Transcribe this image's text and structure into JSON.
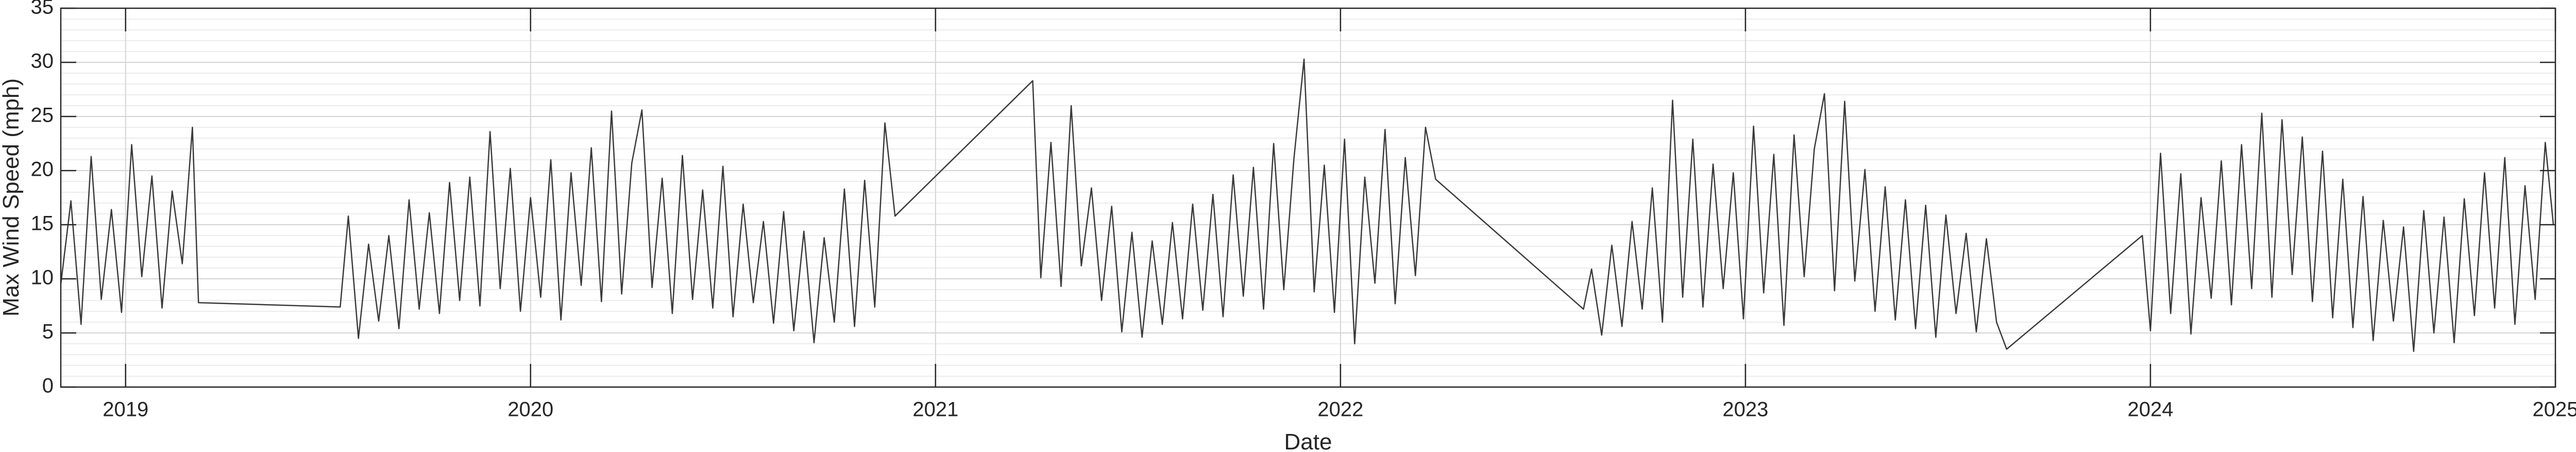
{
  "chart_data": {
    "type": "line",
    "xlabel": "Date",
    "ylabel": "Max Wind Speed (mph)",
    "xlim": [
      2018.84,
      2025
    ],
    "xticks": [
      2019,
      2020,
      2021,
      2022,
      2023,
      2024,
      2025
    ],
    "ylim": [
      0,
      35
    ],
    "yticks": [
      0,
      5,
      10,
      15,
      20,
      25,
      30,
      35
    ],
    "grid": true,
    "minor_grid": true,
    "color": "#3a3a3a",
    "x": [
      2018.84,
      2018.865,
      2018.89,
      2018.915,
      2018.94,
      2018.965,
      2018.99,
      2019.015,
      2019.04,
      2019.065,
      2019.09,
      2019.115,
      2019.14,
      2019.165,
      2019.18,
      2019.53,
      2019.55,
      2019.575,
      2019.6,
      2019.625,
      2019.65,
      2019.675,
      2019.7,
      2019.725,
      2019.75,
      2019.775,
      2019.8,
      2019.825,
      2019.85,
      2019.875,
      2019.9,
      2019.925,
      2019.95,
      2019.975,
      2020,
      2020.025,
      2020.05,
      2020.075,
      2020.1,
      2020.125,
      2020.15,
      2020.175,
      2020.2,
      2020.225,
      2020.25,
      2020.275,
      2020.3,
      2020.325,
      2020.35,
      2020.375,
      2020.4,
      2020.425,
      2020.45,
      2020.475,
      2020.5,
      2020.525,
      2020.55,
      2020.575,
      2020.6,
      2020.625,
      2020.65,
      2020.675,
      2020.7,
      2020.725,
      2020.75,
      2020.775,
      2020.8,
      2020.825,
      2020.85,
      2020.875,
      2020.9,
      2021.24,
      2021.26,
      2021.285,
      2021.31,
      2021.335,
      2021.36,
      2021.385,
      2021.41,
      2021.435,
      2021.46,
      2021.485,
      2021.51,
      2021.535,
      2021.56,
      2021.585,
      2021.61,
      2021.635,
      2021.66,
      2021.685,
      2021.71,
      2021.735,
      2021.76,
      2021.785,
      2021.81,
      2021.835,
      2021.86,
      2021.885,
      2021.91,
      2021.935,
      2021.96,
      2021.985,
      2022.01,
      2022.035,
      2022.06,
      2022.085,
      2022.11,
      2022.135,
      2022.16,
      2022.185,
      2022.21,
      2022.235,
      2022.6,
      2022.62,
      2022.645,
      2022.67,
      2022.695,
      2022.72,
      2022.745,
      2022.77,
      2022.795,
      2022.82,
      2022.845,
      2022.87,
      2022.895,
      2022.92,
      2022.945,
      2022.97,
      2022.995,
      2023.02,
      2023.045,
      2023.07,
      2023.095,
      2023.12,
      2023.145,
      2023.17,
      2023.195,
      2023.22,
      2023.245,
      2023.27,
      2023.295,
      2023.32,
      2023.345,
      2023.37,
      2023.395,
      2023.42,
      2023.445,
      2023.47,
      2023.495,
      2023.52,
      2023.545,
      2023.57,
      2023.595,
      2023.62,
      2023.645,
      2023.98,
      2024,
      2024.025,
      2024.05,
      2024.075,
      2024.1,
      2024.125,
      2024.15,
      2024.175,
      2024.2,
      2024.225,
      2024.25,
      2024.275,
      2024.3,
      2024.325,
      2024.35,
      2024.375,
      2024.4,
      2024.425,
      2024.45,
      2024.475,
      2024.5,
      2024.525,
      2024.55,
      2024.575,
      2024.6,
      2024.625,
      2024.65,
      2024.675,
      2024.7,
      2024.725,
      2024.75,
      2024.775,
      2024.8,
      2024.825,
      2024.85,
      2024.875,
      2024.9,
      2024.925,
      2024.95,
      2024.975,
      2024.995
    ],
    "values": [
      9.5,
      17.2,
      5.8,
      21.3,
      8.1,
      16.4,
      6.9,
      22.4,
      10.2,
      19.5,
      7.3,
      18.1,
      11.4,
      24.0,
      7.8,
      7.4,
      15.8,
      4.5,
      13.2,
      6.1,
      14.0,
      5.4,
      17.3,
      7.2,
      16.1,
      6.8,
      18.9,
      8.0,
      19.4,
      7.5,
      23.6,
      9.1,
      20.2,
      7.0,
      17.5,
      8.3,
      21.0,
      6.2,
      19.8,
      9.4,
      22.1,
      7.9,
      25.5,
      8.6,
      20.7,
      25.6,
      9.2,
      19.3,
      6.8,
      21.4,
      8.1,
      18.2,
      7.3,
      20.4,
      6.5,
      16.9,
      7.8,
      15.3,
      5.9,
      16.2,
      5.2,
      14.4,
      4.1,
      13.8,
      6.0,
      18.3,
      5.6,
      19.1,
      7.4,
      24.4,
      15.8,
      28.3,
      10.1,
      22.6,
      9.3,
      26.0,
      11.2,
      18.4,
      8.0,
      16.7,
      5.1,
      14.3,
      4.6,
      13.5,
      5.8,
      15.2,
      6.3,
      16.9,
      7.1,
      17.8,
      6.5,
      19.6,
      8.4,
      20.3,
      7.2,
      22.5,
      9.0,
      21.1,
      30.3,
      8.8,
      20.5,
      6.9,
      22.9,
      4.0,
      19.4,
      9.6,
      23.8,
      7.7,
      21.2,
      10.3,
      24.0,
      19.2,
      7.2,
      10.9,
      4.8,
      13.1,
      5.6,
      15.3,
      7.2,
      18.4,
      6.0,
      26.5,
      8.3,
      22.9,
      7.4,
      20.6,
      9.1,
      19.8,
      6.3,
      24.1,
      8.7,
      21.5,
      5.7,
      23.3,
      10.2,
      22.0,
      27.1,
      8.9,
      26.4,
      9.8,
      20.1,
      7.0,
      18.5,
      6.2,
      17.3,
      5.4,
      16.8,
      4.6,
      15.9,
      6.8,
      14.2,
      5.1,
      13.7,
      6.0,
      3.5,
      14.0,
      5.2,
      21.6,
      6.8,
      19.7,
      4.9,
      17.5,
      8.2,
      20.9,
      7.6,
      22.4,
      9.1,
      25.3,
      8.3,
      24.7,
      10.4,
      23.1,
      7.9,
      21.8,
      6.4,
      19.2,
      5.5,
      17.6,
      4.3,
      15.4,
      6.1,
      14.8,
      3.3,
      16.3,
      5.0,
      15.7,
      4.1,
      17.4,
      6.6,
      19.8,
      7.3,
      21.2,
      5.8,
      18.6,
      8.1,
      22.6,
      15.0
    ]
  }
}
